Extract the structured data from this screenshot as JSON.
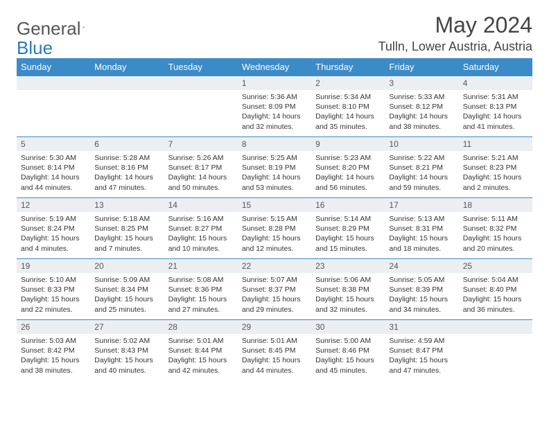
{
  "logo": {
    "text1": "General",
    "text2": "Blue"
  },
  "title": "May 2024",
  "location": "Tulln, Lower Austria, Austria",
  "colors": {
    "header_bg": "#3b8bc9",
    "header_text": "#ffffff",
    "row_border": "#3b8bc9",
    "daynum_bg": "#eceff2",
    "text": "#333333",
    "logo_gray": "#555555",
    "logo_blue": "#2a7ab9"
  },
  "day_headers": [
    "Sunday",
    "Monday",
    "Tuesday",
    "Wednesday",
    "Thursday",
    "Friday",
    "Saturday"
  ],
  "weeks": [
    [
      null,
      null,
      null,
      {
        "d": "1",
        "sr": "5:36 AM",
        "ss": "8:09 PM",
        "dl": "14 hours and 32 minutes."
      },
      {
        "d": "2",
        "sr": "5:34 AM",
        "ss": "8:10 PM",
        "dl": "14 hours and 35 minutes."
      },
      {
        "d": "3",
        "sr": "5:33 AM",
        "ss": "8:12 PM",
        "dl": "14 hours and 38 minutes."
      },
      {
        "d": "4",
        "sr": "5:31 AM",
        "ss": "8:13 PM",
        "dl": "14 hours and 41 minutes."
      }
    ],
    [
      {
        "d": "5",
        "sr": "5:30 AM",
        "ss": "8:14 PM",
        "dl": "14 hours and 44 minutes."
      },
      {
        "d": "6",
        "sr": "5:28 AM",
        "ss": "8:16 PM",
        "dl": "14 hours and 47 minutes."
      },
      {
        "d": "7",
        "sr": "5:26 AM",
        "ss": "8:17 PM",
        "dl": "14 hours and 50 minutes."
      },
      {
        "d": "8",
        "sr": "5:25 AM",
        "ss": "8:19 PM",
        "dl": "14 hours and 53 minutes."
      },
      {
        "d": "9",
        "sr": "5:23 AM",
        "ss": "8:20 PM",
        "dl": "14 hours and 56 minutes."
      },
      {
        "d": "10",
        "sr": "5:22 AM",
        "ss": "8:21 PM",
        "dl": "14 hours and 59 minutes."
      },
      {
        "d": "11",
        "sr": "5:21 AM",
        "ss": "8:23 PM",
        "dl": "15 hours and 2 minutes."
      }
    ],
    [
      {
        "d": "12",
        "sr": "5:19 AM",
        "ss": "8:24 PM",
        "dl": "15 hours and 4 minutes."
      },
      {
        "d": "13",
        "sr": "5:18 AM",
        "ss": "8:25 PM",
        "dl": "15 hours and 7 minutes."
      },
      {
        "d": "14",
        "sr": "5:16 AM",
        "ss": "8:27 PM",
        "dl": "15 hours and 10 minutes."
      },
      {
        "d": "15",
        "sr": "5:15 AM",
        "ss": "8:28 PM",
        "dl": "15 hours and 12 minutes."
      },
      {
        "d": "16",
        "sr": "5:14 AM",
        "ss": "8:29 PM",
        "dl": "15 hours and 15 minutes."
      },
      {
        "d": "17",
        "sr": "5:13 AM",
        "ss": "8:31 PM",
        "dl": "15 hours and 18 minutes."
      },
      {
        "d": "18",
        "sr": "5:11 AM",
        "ss": "8:32 PM",
        "dl": "15 hours and 20 minutes."
      }
    ],
    [
      {
        "d": "19",
        "sr": "5:10 AM",
        "ss": "8:33 PM",
        "dl": "15 hours and 22 minutes."
      },
      {
        "d": "20",
        "sr": "5:09 AM",
        "ss": "8:34 PM",
        "dl": "15 hours and 25 minutes."
      },
      {
        "d": "21",
        "sr": "5:08 AM",
        "ss": "8:36 PM",
        "dl": "15 hours and 27 minutes."
      },
      {
        "d": "22",
        "sr": "5:07 AM",
        "ss": "8:37 PM",
        "dl": "15 hours and 29 minutes."
      },
      {
        "d": "23",
        "sr": "5:06 AM",
        "ss": "8:38 PM",
        "dl": "15 hours and 32 minutes."
      },
      {
        "d": "24",
        "sr": "5:05 AM",
        "ss": "8:39 PM",
        "dl": "15 hours and 34 minutes."
      },
      {
        "d": "25",
        "sr": "5:04 AM",
        "ss": "8:40 PM",
        "dl": "15 hours and 36 minutes."
      }
    ],
    [
      {
        "d": "26",
        "sr": "5:03 AM",
        "ss": "8:42 PM",
        "dl": "15 hours and 38 minutes."
      },
      {
        "d": "27",
        "sr": "5:02 AM",
        "ss": "8:43 PM",
        "dl": "15 hours and 40 minutes."
      },
      {
        "d": "28",
        "sr": "5:01 AM",
        "ss": "8:44 PM",
        "dl": "15 hours and 42 minutes."
      },
      {
        "d": "29",
        "sr": "5:01 AM",
        "ss": "8:45 PM",
        "dl": "15 hours and 44 minutes."
      },
      {
        "d": "30",
        "sr": "5:00 AM",
        "ss": "8:46 PM",
        "dl": "15 hours and 45 minutes."
      },
      {
        "d": "31",
        "sr": "4:59 AM",
        "ss": "8:47 PM",
        "dl": "15 hours and 47 minutes."
      },
      null
    ]
  ],
  "labels": {
    "sunrise": "Sunrise:",
    "sunset": "Sunset:",
    "daylight": "Daylight:"
  }
}
